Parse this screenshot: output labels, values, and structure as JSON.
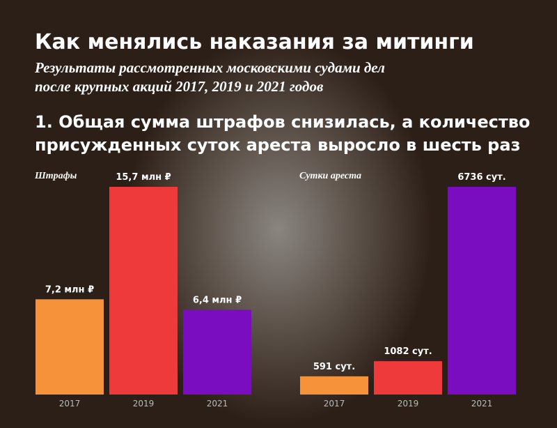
{
  "header": {
    "title": "Как менялись наказания за митинги",
    "subtitle": [
      "Результаты рассмотренных московскими судами дел",
      "после крупных акций 2017, 2019 и 2021 годов"
    ],
    "heading": [
      "1. Общая сумма штрафов снизилась, а количество",
      "присужденных суток ареста выросло в шесть раз"
    ]
  },
  "chart_data": [
    {
      "type": "bar",
      "title": "Штрафы",
      "categories": [
        "2017",
        "2019",
        "2021"
      ],
      "values": [
        7.2,
        15.7,
        6.4
      ],
      "value_labels": [
        "7,2 млн ₽",
        "15,7 млн ₽",
        "6,4 млн ₽"
      ],
      "colors": [
        "#f5923a",
        "#ee3a3a",
        "#7a0dbf"
      ]
    },
    {
      "type": "bar",
      "title": "Сутки ареста",
      "categories": [
        "2017",
        "2019",
        "2021"
      ],
      "values": [
        591,
        1082,
        6736
      ],
      "value_labels": [
        "591 сут.",
        "1082 сут.",
        "6736 сут."
      ],
      "colors": [
        "#f5923a",
        "#ee3a3a",
        "#7a0dbf"
      ]
    }
  ]
}
